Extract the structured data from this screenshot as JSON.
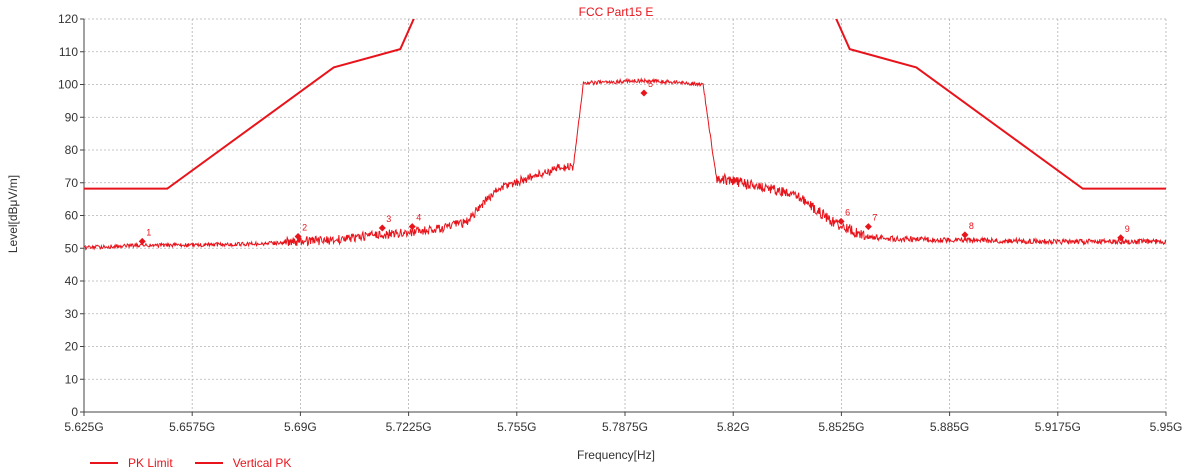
{
  "chart_data": {
    "type": "line",
    "title": "FCC Part15 E",
    "xlabel": "Frequency[Hz]",
    "ylabel": "Level[dBμV/m]",
    "xlim": [
      5.625,
      5.95
    ],
    "ylim": [
      0,
      120
    ],
    "x_ticks": [
      5.625,
      5.6575,
      5.69,
      5.7225,
      5.755,
      5.7875,
      5.82,
      5.8525,
      5.885,
      5.9175,
      5.95
    ],
    "x_tick_labels": [
      "5.625G",
      "5.6575G",
      "5.69G",
      "5.7225G",
      "5.755G",
      "5.7875G",
      "5.82G",
      "5.8525G",
      "5.885G",
      "5.9175G",
      "5.95G"
    ],
    "y_ticks": [
      0,
      10,
      20,
      30,
      40,
      50,
      60,
      70,
      80,
      90,
      100,
      110,
      120
    ],
    "grid": true,
    "legend_position": "bottom-left",
    "color": "#e8141c",
    "series": [
      {
        "name": "PK Limit",
        "x": [
          5.625,
          5.65,
          5.7,
          5.72,
          5.725,
          5.85,
          5.855,
          5.875,
          5.925,
          5.95
        ],
        "y": [
          68.2,
          68.2,
          105.2,
          110.8,
          122.2,
          122.2,
          110.8,
          105.2,
          68.2,
          68.2
        ]
      },
      {
        "name": "Vertical PK",
        "x": [
          5.625,
          5.64,
          5.66,
          5.68,
          5.69,
          5.7,
          5.71,
          5.72,
          5.73,
          5.74,
          5.745,
          5.75,
          5.76,
          5.768,
          5.772,
          5.775,
          5.777,
          5.785,
          5.79,
          5.8,
          5.807,
          5.811,
          5.813,
          5.815,
          5.82,
          5.83,
          5.84,
          5.85,
          5.86,
          5.87,
          5.88,
          5.9,
          5.92,
          5.94,
          5.95
        ],
        "y": [
          50.2,
          50.8,
          51.0,
          51.4,
          52.2,
          52.5,
          53.8,
          54.6,
          55.6,
          58.0,
          64.0,
          68.5,
          72.0,
          74.5,
          75.0,
          100.5,
          100.5,
          100.8,
          101.2,
          100.8,
          100.4,
          100.0,
          85.0,
          71.5,
          70.5,
          68.5,
          65.5,
          58.0,
          53.5,
          52.8,
          52.6,
          52.3,
          52.0,
          52.0,
          52.0
        ]
      }
    ],
    "markers": [
      {
        "label": "1",
        "x": 5.6425,
        "y": 52.1
      },
      {
        "label": "2",
        "x": 5.6893,
        "y": 53.6
      },
      {
        "label": "3",
        "x": 5.7146,
        "y": 56.2
      },
      {
        "label": "4",
        "x": 5.7236,
        "y": 56.6
      },
      {
        "label": "5",
        "x": 5.7932,
        "y": 97.4
      },
      {
        "label": "6",
        "x": 5.8524,
        "y": 58.2
      },
      {
        "label": "7",
        "x": 5.8606,
        "y": 56.6
      },
      {
        "label": "8",
        "x": 5.8896,
        "y": 54.1
      },
      {
        "label": "9",
        "x": 5.9364,
        "y": 53.2
      }
    ]
  }
}
